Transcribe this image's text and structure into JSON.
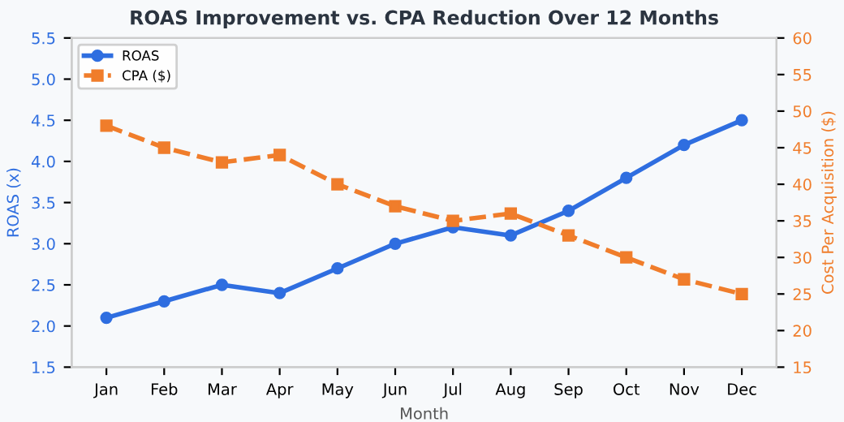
{
  "chart_data": {
    "type": "line",
    "title": "ROAS Improvement vs. CPA Reduction Over 12 Months",
    "categories": [
      "Jan",
      "Feb",
      "Mar",
      "Apr",
      "May",
      "Jun",
      "Jul",
      "Aug",
      "Sep",
      "Oct",
      "Nov",
      "Dec"
    ],
    "series": [
      {
        "name": "ROAS",
        "color": "#2f6ee0",
        "values": [
          2.1,
          2.3,
          2.5,
          2.4,
          2.7,
          3.0,
          3.2,
          3.1,
          3.4,
          3.8,
          4.2,
          4.5
        ],
        "marker": "circle",
        "line_style": "solid"
      },
      {
        "name": "CPA ($)",
        "color": "#f07d2b",
        "values": [
          48,
          45,
          43,
          44,
          40,
          37,
          35,
          36,
          33,
          30,
          27,
          25
        ],
        "axis": "y2",
        "marker": "square",
        "line_style": "dashed"
      }
    ],
    "xlabel": "Month",
    "ylabel": "ROAS (x)",
    "y2label": "Cost Per Acquisition ($)",
    "ylim": [
      1.5,
      5.5
    ],
    "yticks": [
      1.5,
      {
        "value": 2,
        "label": "2.0"
      },
      2.5,
      {
        "value": 3,
        "label": "3.0"
      },
      3.5,
      {
        "value": 4,
        "label": "4.0"
      },
      4.5,
      {
        "value": 5,
        "label": "5.0"
      },
      5.5
    ],
    "y2lim": [
      15,
      60
    ],
    "y2ticks": [
      15,
      20,
      25,
      30,
      35,
      40,
      45,
      50,
      55,
      60
    ],
    "legend": "top left"
  }
}
